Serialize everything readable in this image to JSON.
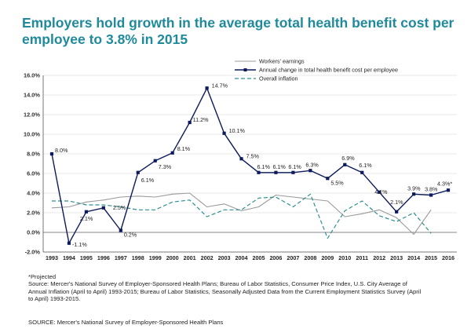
{
  "title": {
    "line1": "Employers hold growth in the average total health benefit cost per",
    "line2": "employee to 3.8% in 2015"
  },
  "colors": {
    "title": "#1f8a9c",
    "earnings": "#9a9a9a",
    "benefit_cost": "#0d1a5c",
    "inflation": "#2f8f91"
  },
  "chart_data": {
    "type": "line",
    "x": [
      "1993",
      "1994",
      "1995",
      "1996",
      "1997",
      "1998",
      "1999",
      "2000",
      "2001",
      "2002",
      "2003",
      "2004",
      "2005",
      "2006",
      "2007",
      "2008",
      "2009",
      "2010",
      "2011",
      "2012",
      "2013",
      "2014",
      "2015",
      "2016"
    ],
    "ylim": [
      -2.0,
      16.0
    ],
    "yticks": [
      "-2.0%",
      "0.0%",
      "2.0%",
      "4.0%",
      "6.0%",
      "8.0%",
      "10.0%",
      "12.0%",
      "14.0%",
      "16.0%"
    ],
    "grid": true,
    "legend_position": "top-right",
    "series": [
      {
        "name": "Workers' earnings",
        "style": "solid-gray",
        "values": [
          2.5,
          2.6,
          3.1,
          3.3,
          3.6,
          3.7,
          3.6,
          3.9,
          4.0,
          2.6,
          2.9,
          2.2,
          2.6,
          3.8,
          3.6,
          3.4,
          3.2,
          1.6,
          1.9,
          2.3,
          1.5,
          -0.2,
          2.3,
          null
        ]
      },
      {
        "name": "Annual change in total health benefit cost per employee",
        "style": "solid-navy-markers",
        "values": [
          8.0,
          -1.1,
          2.1,
          2.5,
          0.2,
          6.1,
          7.3,
          8.1,
          11.2,
          14.7,
          10.1,
          7.5,
          6.1,
          6.1,
          6.1,
          6.3,
          5.5,
          6.9,
          6.1,
          4.1,
          2.1,
          3.9,
          3.8,
          4.3
        ],
        "labels": [
          "8.0%",
          "-1.1%",
          "2.1%",
          "2.5%",
          "0.2%",
          "6.1%",
          "7.3%",
          "8.1%",
          "11.2%",
          "14.7%",
          "10.1%",
          "7.5%",
          "6.1%",
          "6.1%",
          "6.1%",
          "6.3%",
          "5.5%",
          "6.9%",
          "6.1%",
          "4.1%",
          "2.1%",
          "3.9%",
          "3.8%",
          "4.3%*"
        ]
      },
      {
        "name": "Overall inflation",
        "style": "dashed-teal",
        "values": [
          3.2,
          3.2,
          2.8,
          2.8,
          2.6,
          2.3,
          2.3,
          3.1,
          3.3,
          1.6,
          2.3,
          2.3,
          3.5,
          3.6,
          2.6,
          3.9,
          -0.6,
          2.2,
          3.2,
          1.7,
          1.1,
          2.0,
          -0.1,
          null
        ]
      }
    ]
  },
  "footnotes": {
    "projected": "*Projected",
    "source_line1": "Source: Mercer's National Survey of Employer-Sponsored Health Plans; Bureau of Labor Statistics, Consumer Price Index, U.S. City Average of",
    "source_line2": "Annual Inflation (April to April) 1993-2015;  Bureau of Labor Statistics, Seasonally Adjusted Data from the Current Employment Statistics Survey (April",
    "source_line3": "to April) 1993-2015.",
    "source_bottom": "SOURCE: Mercer's National Survey of Employer-Sponsored Health Plans"
  }
}
